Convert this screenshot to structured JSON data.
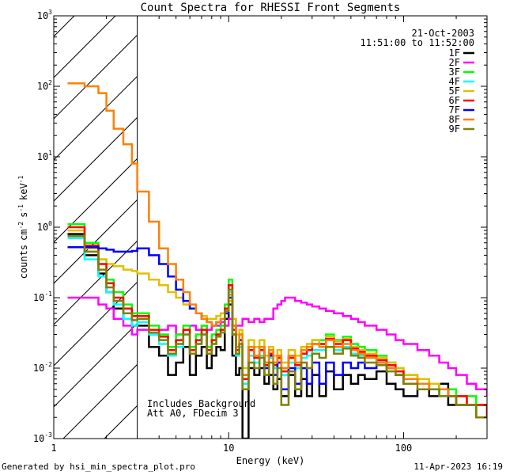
{
  "chart_data": {
    "type": "line",
    "title": "Count Spectra for RHESSI Front Segments",
    "xlabel": "Energy (keV)",
    "ylabel": "counts cm^-2 s^-1 keV^-1",
    "xscale": "log",
    "yscale": "log",
    "xlim": [
      1,
      300
    ],
    "ylim": [
      0.001,
      1000
    ],
    "x_ticks": [
      {
        "value": 1,
        "label": "1"
      },
      {
        "value": 10,
        "label": "10"
      },
      {
        "value": 100,
        "label": "100"
      }
    ],
    "y_ticks": [
      {
        "value": 0.001,
        "base": "10",
        "exp": "-3"
      },
      {
        "value": 0.01,
        "base": "10",
        "exp": "-2"
      },
      {
        "value": 0.1,
        "base": "10",
        "exp": "-1"
      },
      {
        "value": 1,
        "base": "10",
        "exp": "0"
      },
      {
        "value": 10,
        "base": "10",
        "exp": "1"
      },
      {
        "value": 100,
        "base": "10",
        "exp": "2"
      },
      {
        "value": 1000,
        "base": "10",
        "exp": "3"
      }
    ],
    "hatched_region": {
      "x_start": 1,
      "x_end": 3
    },
    "date": "21-Oct-2003",
    "time_range": "11:51:00 to 11:52:00",
    "annotations": [
      "Includes Background",
      "Att A0, FDecim 3"
    ],
    "series": [
      {
        "name": "1F",
        "color": "#000000",
        "x": [
          1.2,
          1.5,
          1.8,
          2.0,
          2.2,
          2.5,
          2.8,
          3.0,
          3.5,
          4.0,
          4.5,
          5.0,
          5.5,
          6.0,
          6.5,
          7.0,
          7.5,
          8.0,
          8.5,
          9.0,
          9.5,
          10,
          10.5,
          11,
          11.5,
          12,
          13,
          14,
          15,
          16,
          17,
          18,
          19,
          20,
          22,
          24,
          26,
          28,
          30,
          33,
          36,
          40,
          45,
          50,
          55,
          60,
          70,
          80,
          90,
          100,
          120,
          140,
          160,
          180,
          200,
          230,
          260,
          300
        ],
        "y": [
          0.8,
          0.4,
          0.22,
          0.12,
          0.07,
          0.05,
          0.04,
          0.04,
          0.02,
          0.015,
          0.008,
          0.012,
          0.02,
          0.008,
          0.015,
          0.02,
          0.01,
          0.015,
          0.02,
          0.018,
          0.05,
          0.08,
          0.015,
          0.008,
          0.01,
          0.001,
          0.01,
          0.008,
          0.01,
          0.006,
          0.008,
          0.005,
          0.007,
          0.004,
          0.008,
          0.004,
          0.007,
          0.004,
          0.008,
          0.004,
          0.009,
          0.005,
          0.008,
          0.006,
          0.008,
          0.007,
          0.009,
          0.006,
          0.005,
          0.004,
          0.005,
          0.004,
          0.006,
          0.003,
          0.003,
          0.003,
          0.002,
          0.002
        ]
      },
      {
        "name": "2F",
        "color": "#ff00ff",
        "x": [
          1.2,
          1.5,
          1.8,
          2.0,
          2.2,
          2.5,
          2.8,
          3.0,
          3.5,
          4.0,
          4.5,
          5.0,
          5.5,
          6.0,
          6.5,
          7.0,
          7.5,
          8.0,
          8.5,
          9.0,
          9.5,
          10,
          11,
          12,
          13,
          14,
          15,
          16,
          17,
          18,
          19,
          20,
          21,
          22,
          24,
          26,
          28,
          30,
          33,
          36,
          40,
          45,
          50,
          55,
          60,
          70,
          80,
          90,
          100,
          120,
          140,
          160,
          180,
          200,
          230,
          260,
          300
        ],
        "y": [
          0.1,
          0.1,
          0.08,
          0.07,
          0.05,
          0.04,
          0.03,
          0.035,
          0.03,
          0.035,
          0.04,
          0.03,
          0.035,
          0.04,
          0.035,
          0.04,
          0.035,
          0.04,
          0.04,
          0.045,
          0.04,
          0.05,
          0.04,
          0.05,
          0.045,
          0.05,
          0.045,
          0.05,
          0.05,
          0.07,
          0.08,
          0.09,
          0.1,
          0.1,
          0.09,
          0.085,
          0.08,
          0.075,
          0.07,
          0.065,
          0.06,
          0.055,
          0.05,
          0.045,
          0.04,
          0.035,
          0.03,
          0.025,
          0.022,
          0.018,
          0.015,
          0.012,
          0.01,
          0.008,
          0.006,
          0.005,
          0.004
        ]
      },
      {
        "name": "3F",
        "color": "#00ff00",
        "x": [
          1.2,
          1.5,
          1.8,
          2.0,
          2.2,
          2.5,
          2.8,
          3.0,
          3.5,
          4.0,
          4.5,
          5.0,
          5.5,
          6.0,
          6.5,
          7.0,
          7.5,
          8.0,
          8.5,
          9.0,
          9.5,
          10,
          10.5,
          11,
          11.5,
          12,
          13,
          14,
          15,
          16,
          17,
          18,
          19,
          20,
          22,
          24,
          26,
          28,
          30,
          33,
          36,
          40,
          45,
          50,
          55,
          60,
          70,
          80,
          90,
          100,
          120,
          140,
          160,
          180,
          200,
          230,
          260,
          300
        ],
        "y": [
          1.1,
          0.6,
          0.35,
          0.18,
          0.12,
          0.08,
          0.06,
          0.06,
          0.04,
          0.03,
          0.02,
          0.03,
          0.04,
          0.02,
          0.03,
          0.04,
          0.02,
          0.03,
          0.035,
          0.04,
          0.08,
          0.18,
          0.04,
          0.02,
          0.03,
          0.008,
          0.02,
          0.015,
          0.02,
          0.012,
          0.018,
          0.012,
          0.015,
          0.01,
          0.015,
          0.012,
          0.018,
          0.02,
          0.025,
          0.025,
          0.03,
          0.025,
          0.028,
          0.022,
          0.02,
          0.018,
          0.015,
          0.012,
          0.01,
          0.008,
          0.007,
          0.006,
          0.005,
          0.005,
          0.004,
          0.004,
          0.003,
          0.003
        ]
      },
      {
        "name": "4F",
        "color": "#00ffff",
        "x": [
          1.2,
          1.5,
          1.8,
          2.0,
          2.2,
          2.5,
          2.8,
          3.0,
          3.5,
          4.0,
          4.5,
          5.0,
          5.5,
          6.0,
          6.5,
          7.0,
          7.5,
          8.0,
          8.5,
          9.0,
          9.5,
          10,
          10.5,
          11,
          11.5,
          12,
          13,
          14,
          15,
          16,
          17,
          18,
          19,
          20,
          22,
          24,
          26,
          28,
          30,
          33,
          36,
          40,
          45,
          50,
          55,
          60,
          70,
          80,
          90,
          100,
          120,
          140,
          160,
          180,
          200,
          230,
          260,
          300
        ],
        "y": [
          0.7,
          0.35,
          0.2,
          0.12,
          0.08,
          0.05,
          0.04,
          0.045,
          0.03,
          0.022,
          0.015,
          0.02,
          0.03,
          0.018,
          0.022,
          0.03,
          0.018,
          0.022,
          0.03,
          0.035,
          0.06,
          0.12,
          0.03,
          0.015,
          0.02,
          0.006,
          0.015,
          0.012,
          0.015,
          0.01,
          0.014,
          0.01,
          0.012,
          0.008,
          0.012,
          0.01,
          0.014,
          0.015,
          0.018,
          0.018,
          0.02,
          0.018,
          0.02,
          0.016,
          0.015,
          0.014,
          0.012,
          0.01,
          0.008,
          0.007,
          0.006,
          0.005,
          0.004,
          0.004,
          0.003,
          0.003,
          0.002,
          0.002
        ]
      },
      {
        "name": "5F",
        "color": "#e0c000",
        "x": [
          1.2,
          1.5,
          1.8,
          2.0,
          2.2,
          2.5,
          2.8,
          3.0,
          3.5,
          4.0,
          4.5,
          5.0,
          5.5,
          6.0,
          6.5,
          7.0,
          7.5,
          8.0,
          8.5,
          9.0,
          9.5,
          10,
          10.5,
          11,
          11.5,
          12,
          13,
          14,
          15,
          16,
          17,
          18,
          19,
          20,
          22,
          24,
          26,
          28,
          30,
          33,
          36,
          40,
          45,
          50,
          55,
          60,
          70,
          80,
          90,
          100,
          120,
          140,
          160,
          180,
          200,
          230,
          260,
          300
        ],
        "y": [
          0.9,
          0.5,
          0.35,
          0.3,
          0.28,
          0.25,
          0.24,
          0.22,
          0.18,
          0.15,
          0.12,
          0.1,
          0.08,
          0.07,
          0.06,
          0.055,
          0.05,
          0.05,
          0.055,
          0.06,
          0.07,
          0.09,
          0.05,
          0.03,
          0.035,
          0.01,
          0.025,
          0.02,
          0.025,
          0.015,
          0.02,
          0.015,
          0.018,
          0.012,
          0.018,
          0.015,
          0.02,
          0.022,
          0.025,
          0.022,
          0.028,
          0.024,
          0.026,
          0.02,
          0.018,
          0.016,
          0.014,
          0.012,
          0.01,
          0.008,
          0.007,
          0.006,
          0.005,
          0.004,
          0.004,
          0.003,
          0.003,
          0.002
        ]
      },
      {
        "name": "6F",
        "color": "#ff0000",
        "x": [
          1.2,
          1.5,
          1.8,
          2.0,
          2.2,
          2.5,
          2.8,
          3.0,
          3.5,
          4.0,
          4.5,
          5.0,
          5.5,
          6.0,
          6.5,
          7.0,
          7.5,
          8.0,
          8.5,
          9.0,
          9.5,
          10,
          10.5,
          11,
          11.5,
          12,
          13,
          14,
          15,
          16,
          17,
          18,
          19,
          20,
          22,
          24,
          26,
          28,
          30,
          33,
          36,
          40,
          45,
          50,
          55,
          60,
          70,
          80,
          90,
          100,
          120,
          140,
          160,
          180,
          200,
          230,
          260,
          300
        ],
        "y": [
          1.0,
          0.55,
          0.3,
          0.16,
          0.1,
          0.07,
          0.055,
          0.055,
          0.035,
          0.028,
          0.018,
          0.025,
          0.035,
          0.018,
          0.025,
          0.035,
          0.018,
          0.025,
          0.03,
          0.035,
          0.07,
          0.15,
          0.035,
          0.018,
          0.025,
          0.007,
          0.018,
          0.014,
          0.018,
          0.011,
          0.016,
          0.011,
          0.014,
          0.009,
          0.014,
          0.011,
          0.016,
          0.018,
          0.022,
          0.022,
          0.026,
          0.022,
          0.025,
          0.019,
          0.017,
          0.015,
          0.013,
          0.011,
          0.009,
          0.007,
          0.006,
          0.005,
          0.005,
          0.004,
          0.004,
          0.003,
          0.003,
          0.002
        ]
      },
      {
        "name": "7F",
        "color": "#0000ff",
        "x": [
          1.2,
          1.5,
          1.8,
          2.0,
          2.2,
          2.5,
          2.8,
          3.0,
          3.5,
          4.0,
          4.5,
          5.0,
          5.5,
          6.0,
          6.5,
          7.0,
          7.5,
          8.0,
          8.5,
          9.0,
          9.5,
          10,
          10.5,
          11,
          11.5,
          12,
          13,
          14,
          15,
          16,
          17,
          18,
          19,
          20,
          22,
          24,
          26,
          28,
          30,
          33,
          36,
          40,
          45,
          50,
          55,
          60,
          70,
          80,
          90,
          100,
          120,
          140,
          160,
          180,
          200,
          230,
          260,
          300
        ],
        "y": [
          0.52,
          0.52,
          0.5,
          0.48,
          0.45,
          0.45,
          0.46,
          0.5,
          0.4,
          0.3,
          0.2,
          0.13,
          0.09,
          0.07,
          0.06,
          0.05,
          0.045,
          0.04,
          0.045,
          0.05,
          0.06,
          0.1,
          0.04,
          0.02,
          0.025,
          0.008,
          0.02,
          0.015,
          0.02,
          0.01,
          0.015,
          0.008,
          0.012,
          0.005,
          0.01,
          0.006,
          0.01,
          0.006,
          0.012,
          0.006,
          0.012,
          0.008,
          0.012,
          0.01,
          0.012,
          0.01,
          0.012,
          0.01,
          0.008,
          0.006,
          0.006,
          0.005,
          0.005,
          0.004,
          0.003,
          0.003,
          0.002,
          0.002
        ]
      },
      {
        "name": "8F",
        "color": "#ff8000",
        "x": [
          1.2,
          1.5,
          1.8,
          2.0,
          2.2,
          2.5,
          2.8,
          3.0,
          3.5,
          4.0,
          4.5,
          5.0,
          5.5,
          6.0,
          6.5,
          7.0,
          7.5,
          8.0,
          8.5,
          9.0,
          9.5,
          10,
          10.5,
          11,
          11.5,
          12,
          13,
          14,
          15,
          16,
          17,
          18,
          19,
          20,
          22,
          24,
          26,
          28,
          30,
          33,
          36,
          40,
          45,
          50,
          55,
          60,
          70,
          80,
          90,
          100,
          120,
          140,
          160,
          180,
          200,
          230,
          260,
          300
        ],
        "y": [
          110,
          100,
          80,
          45,
          25,
          15,
          8,
          3.2,
          1.2,
          0.5,
          0.3,
          0.18,
          0.12,
          0.08,
          0.06,
          0.05,
          0.045,
          0.04,
          0.045,
          0.05,
          0.065,
          0.11,
          0.04,
          0.02,
          0.03,
          0.008,
          0.02,
          0.015,
          0.02,
          0.012,
          0.018,
          0.012,
          0.015,
          0.01,
          0.015,
          0.012,
          0.018,
          0.02,
          0.022,
          0.02,
          0.025,
          0.02,
          0.022,
          0.018,
          0.016,
          0.014,
          0.012,
          0.01,
          0.008,
          0.007,
          0.006,
          0.005,
          0.005,
          0.004,
          0.003,
          0.003,
          0.002,
          0.002
        ]
      },
      {
        "name": "9F",
        "color": "#808000",
        "x": [
          1.2,
          1.5,
          1.8,
          2.0,
          2.2,
          2.5,
          2.8,
          3.0,
          3.5,
          4.0,
          4.5,
          5.0,
          5.5,
          6.0,
          6.5,
          7.0,
          7.5,
          8.0,
          8.5,
          9.0,
          9.5,
          10,
          10.5,
          11,
          11.5,
          12,
          13,
          14,
          15,
          16,
          17,
          18,
          19,
          20,
          22,
          24,
          26,
          28,
          30,
          33,
          36,
          40,
          45,
          50,
          55,
          60,
          70,
          80,
          90,
          100,
          120,
          140,
          160,
          180,
          200,
          230,
          260,
          300
        ],
        "y": [
          0.75,
          0.45,
          0.25,
          0.14,
          0.09,
          0.06,
          0.048,
          0.05,
          0.032,
          0.025,
          0.016,
          0.022,
          0.03,
          0.016,
          0.022,
          0.03,
          0.016,
          0.022,
          0.028,
          0.032,
          0.065,
          0.13,
          0.03,
          0.016,
          0.022,
          0.005,
          0.012,
          0.01,
          0.014,
          0.008,
          0.012,
          0.006,
          0.01,
          0.003,
          0.009,
          0.005,
          0.012,
          0.01,
          0.016,
          0.014,
          0.02,
          0.016,
          0.019,
          0.015,
          0.014,
          0.012,
          0.011,
          0.009,
          0.008,
          0.006,
          0.005,
          0.005,
          0.004,
          0.004,
          0.003,
          0.003,
          0.002,
          0.002
        ]
      }
    ]
  },
  "footer": {
    "generated": "Generated by hsi_min_spectra_plot.pro",
    "timestamp": "11-Apr-2023 16:19"
  }
}
